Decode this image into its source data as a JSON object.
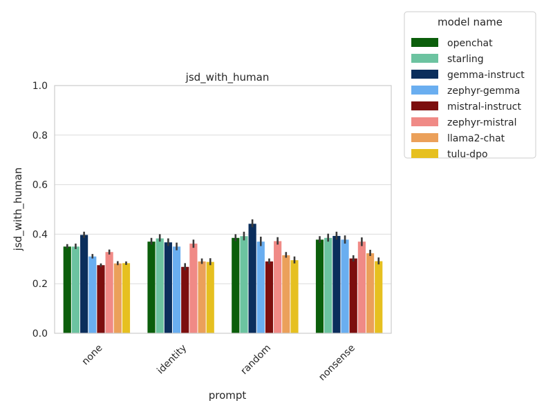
{
  "chart_data": {
    "type": "bar",
    "title": "jsd_with_human",
    "xlabel": "prompt",
    "ylabel": "jsd_with_human",
    "ylim": [
      0,
      1.0
    ],
    "yticks": [
      "0.0",
      "0.2",
      "0.4",
      "0.6",
      "0.8",
      "1.0"
    ],
    "grid": true,
    "categories": [
      "none",
      "identity",
      "random",
      "nonsense"
    ],
    "legend": {
      "title": "model name",
      "placement": "outside upper-right"
    },
    "series": [
      {
        "name": "openchat",
        "color": "#0b5e0b",
        "values": [
          0.35,
          0.37,
          0.385,
          0.378
        ],
        "ci": [
          [
            0.343,
            0.36
          ],
          [
            0.358,
            0.385
          ],
          [
            0.372,
            0.4
          ],
          [
            0.365,
            0.392
          ]
        ]
      },
      {
        "name": "starling",
        "color": "#6cc3a0",
        "values": [
          0.35,
          0.383,
          0.392,
          0.385
        ],
        "ci": [
          [
            0.34,
            0.362
          ],
          [
            0.37,
            0.4
          ],
          [
            0.375,
            0.41
          ],
          [
            0.37,
            0.402
          ]
        ]
      },
      {
        "name": "gemma-instruct",
        "color": "#0b2e5c",
        "values": [
          0.397,
          0.367,
          0.442,
          0.393
        ],
        "ci": [
          [
            0.385,
            0.41
          ],
          [
            0.352,
            0.383
          ],
          [
            0.428,
            0.46
          ],
          [
            0.378,
            0.41
          ]
        ]
      },
      {
        "name": "zephyr-gemma",
        "color": "#6aaef0",
        "values": [
          0.31,
          0.35,
          0.37,
          0.378
        ],
        "ci": [
          [
            0.302,
            0.32
          ],
          [
            0.335,
            0.366
          ],
          [
            0.352,
            0.39
          ],
          [
            0.362,
            0.395
          ]
        ]
      },
      {
        "name": "mistral-instruct",
        "color": "#7c0e0e",
        "values": [
          0.275,
          0.268,
          0.29,
          0.302
        ],
        "ci": [
          [
            0.268,
            0.282
          ],
          [
            0.255,
            0.283
          ],
          [
            0.28,
            0.302
          ],
          [
            0.29,
            0.315
          ]
        ]
      },
      {
        "name": "zephyr-mistral",
        "color": "#f08a86",
        "values": [
          0.328,
          0.362,
          0.372,
          0.37
        ],
        "ci": [
          [
            0.318,
            0.338
          ],
          [
            0.345,
            0.378
          ],
          [
            0.358,
            0.388
          ],
          [
            0.352,
            0.387
          ]
        ]
      },
      {
        "name": "llama2-chat",
        "color": "#eba05a",
        "values": [
          0.282,
          0.29,
          0.315,
          0.323
        ],
        "ci": [
          [
            0.275,
            0.291
          ],
          [
            0.28,
            0.302
          ],
          [
            0.305,
            0.328
          ],
          [
            0.312,
            0.337
          ]
        ]
      },
      {
        "name": "tulu-dpo",
        "color": "#e6c020",
        "values": [
          0.283,
          0.288,
          0.295,
          0.291
        ],
        "ci": [
          [
            0.276,
            0.29
          ],
          [
            0.275,
            0.303
          ],
          [
            0.282,
            0.31
          ],
          [
            0.278,
            0.306
          ]
        ]
      }
    ]
  }
}
